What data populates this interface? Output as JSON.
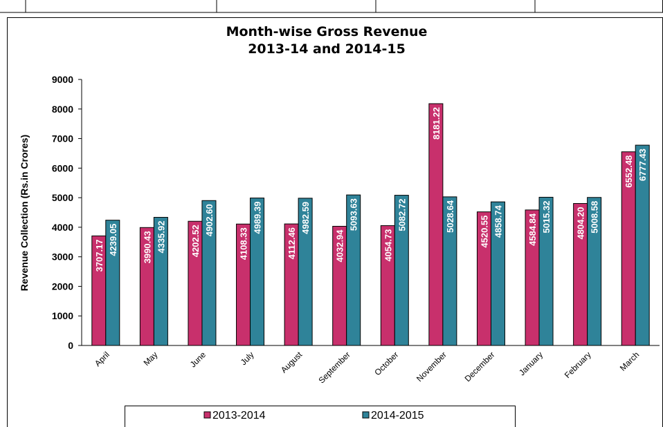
{
  "chart_data": {
    "type": "bar",
    "title": "Month-wise Gross Revenue",
    "subtitle": "2013-14 and 2014-15",
    "y_label": "Revenue Collection (Rs.in Crores)",
    "categories": [
      "April",
      "May",
      "June",
      "July",
      "August",
      "September",
      "October",
      "November",
      "December",
      "January",
      "February",
      "March"
    ],
    "series": [
      {
        "name": "2013-2014",
        "color": "#c8306c",
        "values": [
          3707.17,
          3990.43,
          4202.52,
          4108.33,
          4112.46,
          4032.94,
          4054.73,
          8181.22,
          4520.55,
          4584.84,
          4804.2,
          6552.48
        ],
        "value_labels": [
          "3707.17",
          "3990.43",
          "4202.52",
          "4108.33",
          "4112.46",
          "4032.94",
          "4054.73",
          "8181.22",
          "4520.55",
          "4584.84",
          "4804.20",
          "6552.48"
        ]
      },
      {
        "name": "2014-2015",
        "color": "#2f8399",
        "values": [
          4239.05,
          4335.92,
          4902.6,
          4989.39,
          4982.59,
          5093.63,
          5082.72,
          5028.64,
          4858.74,
          5015.32,
          5008.58,
          6777.43
        ],
        "value_labels": [
          "4239.05",
          "4335.92",
          "4902.60",
          "4989.39",
          "4982.59",
          "5093.63",
          "5082.72",
          "5028.64",
          "4858.74",
          "5015.32",
          "5008.58",
          "6777.43"
        ]
      }
    ],
    "ylim": [
      0,
      9000
    ],
    "yticks": [
      0,
      1000,
      2000,
      3000,
      4000,
      5000,
      6000,
      7000,
      8000,
      9000
    ],
    "grid": false,
    "legend": "bottom"
  }
}
